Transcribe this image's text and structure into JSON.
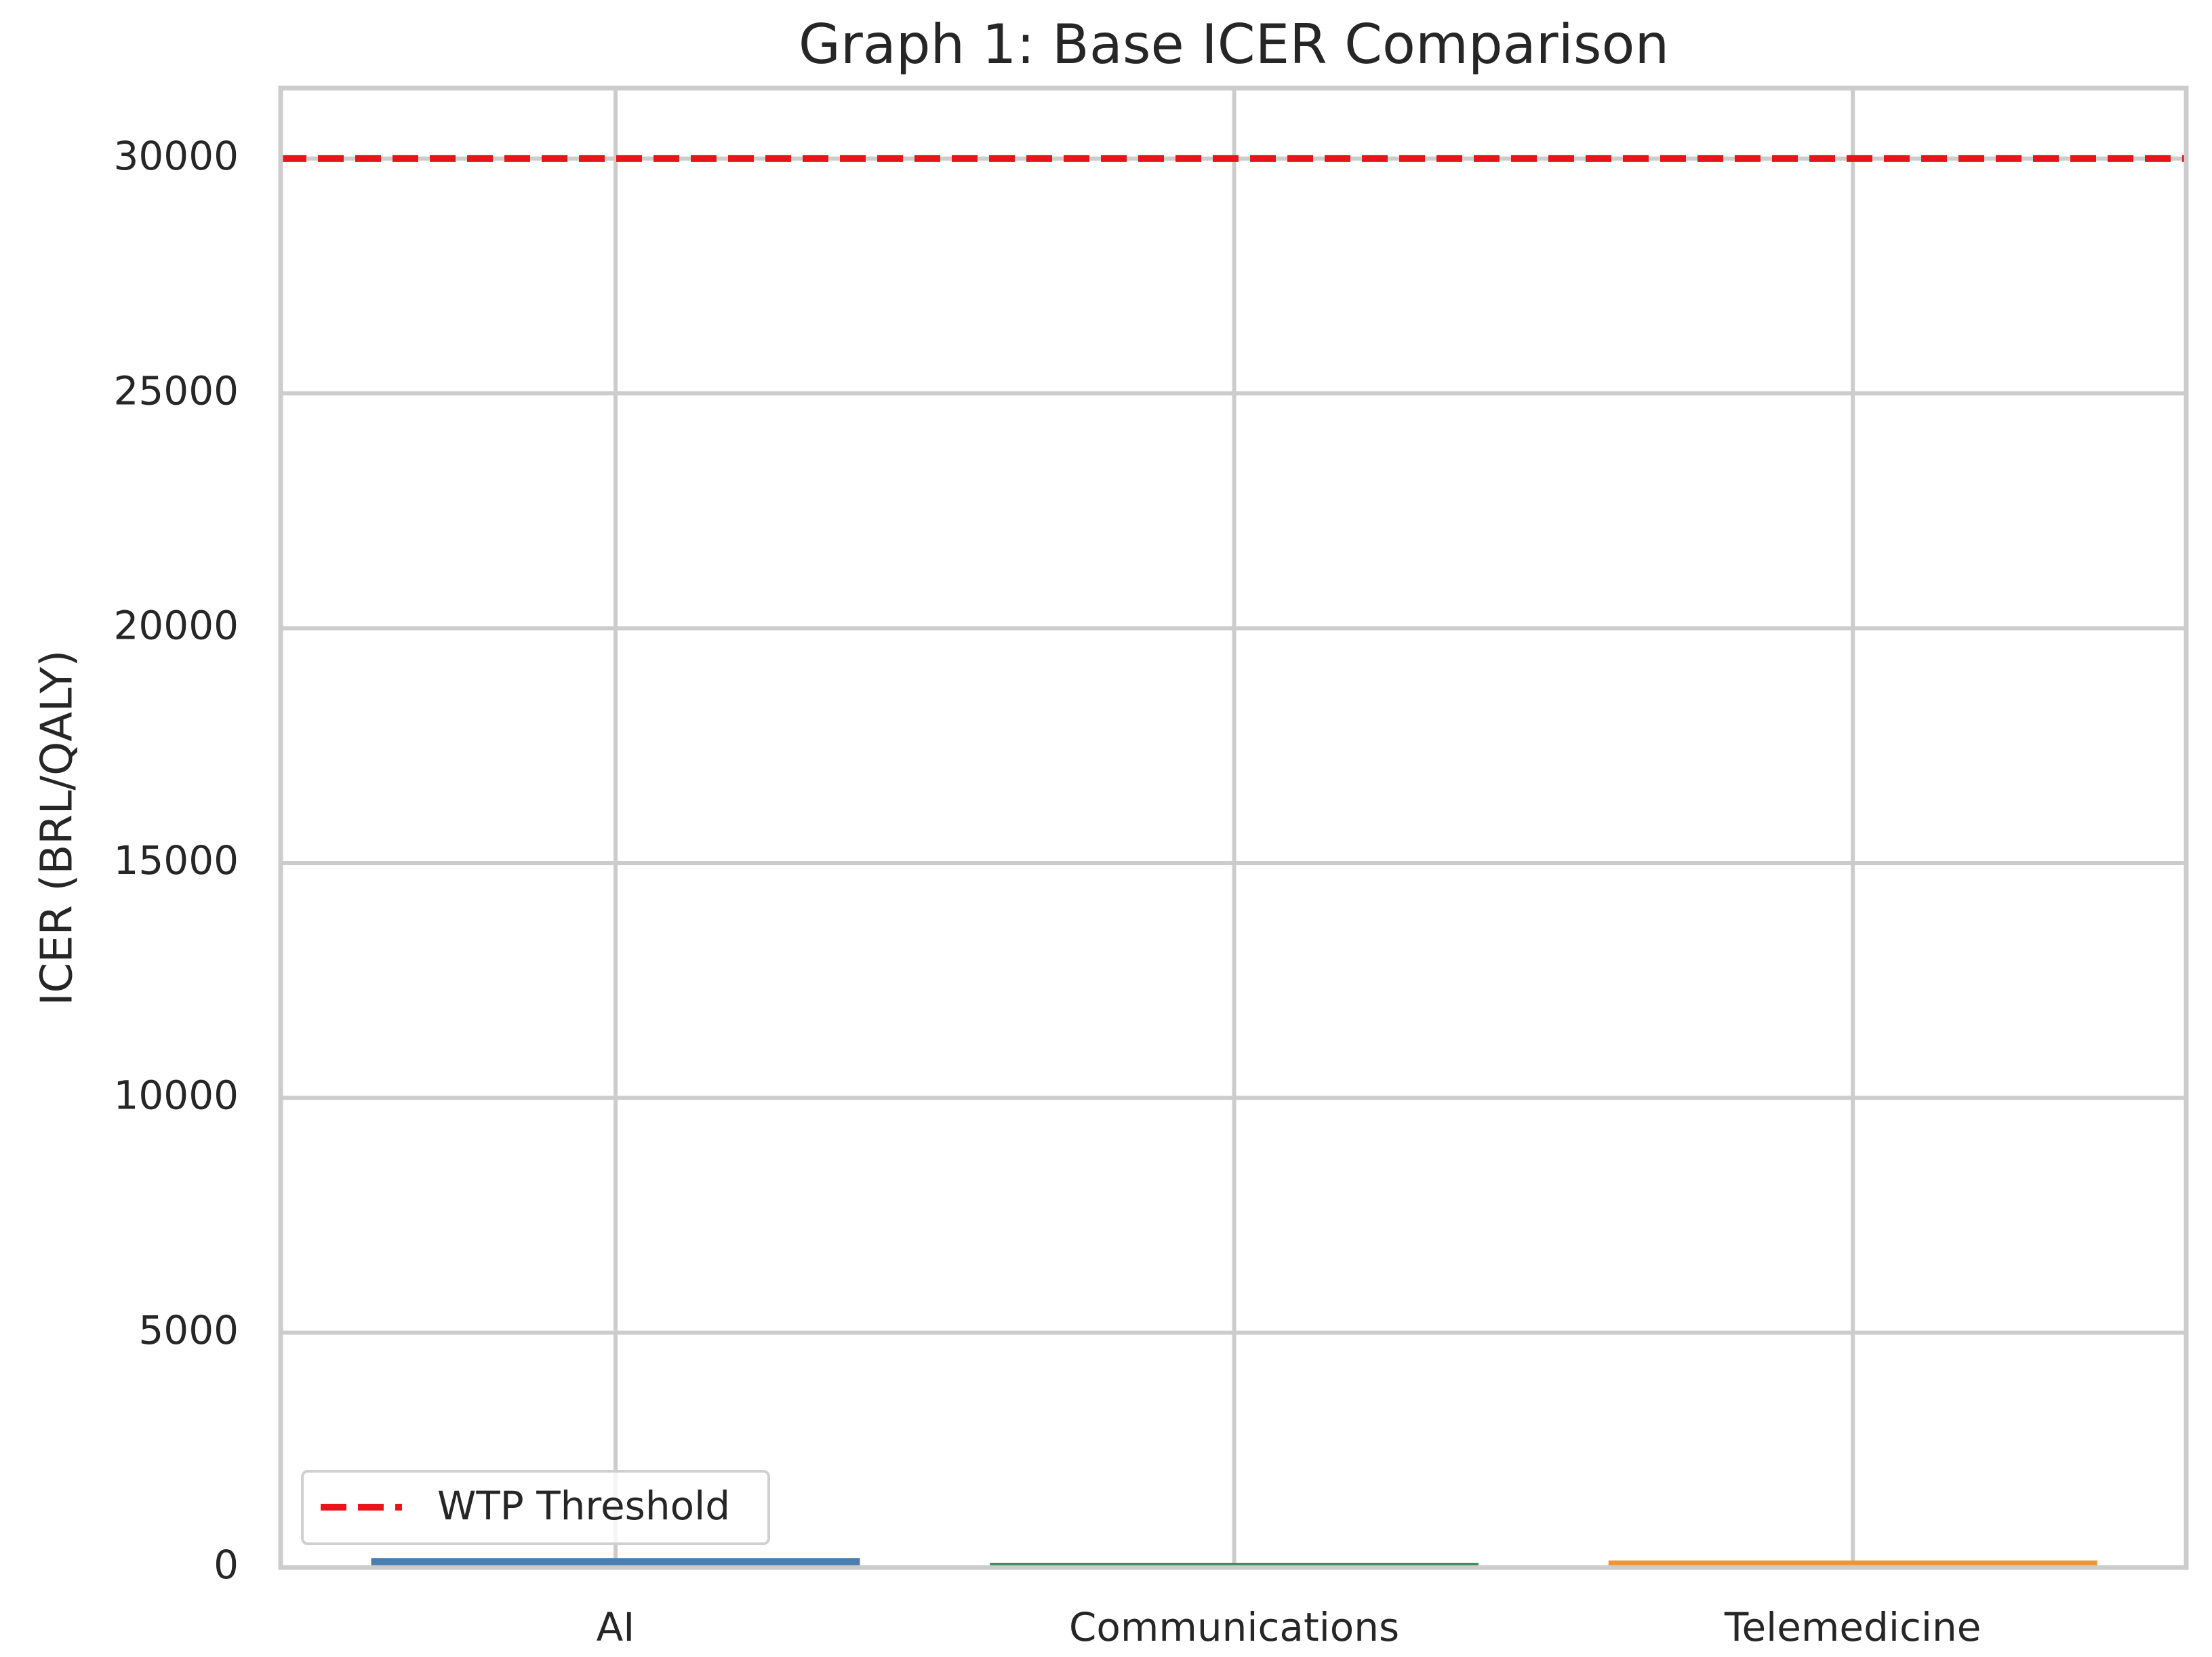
{
  "chart_data": {
    "type": "bar",
    "title": "Graph 1: Base ICER Comparison",
    "ylabel": "ICER (BRL/QALY)",
    "categories": [
      "AI",
      "Communications",
      "Telemedicine"
    ],
    "values": [
      200,
      100,
      150
    ],
    "colors": [
      "#4a7fb0",
      "#3b8b5c",
      "#f0962e"
    ],
    "ylim": [
      0,
      31500
    ],
    "yticks": [
      0,
      5000,
      10000,
      15000,
      20000,
      25000,
      30000
    ],
    "grid": true,
    "threshold": {
      "name": "WTP Threshold",
      "value": 30000,
      "color": "#e8141a",
      "style": "dashed"
    },
    "legend": "lower left"
  }
}
